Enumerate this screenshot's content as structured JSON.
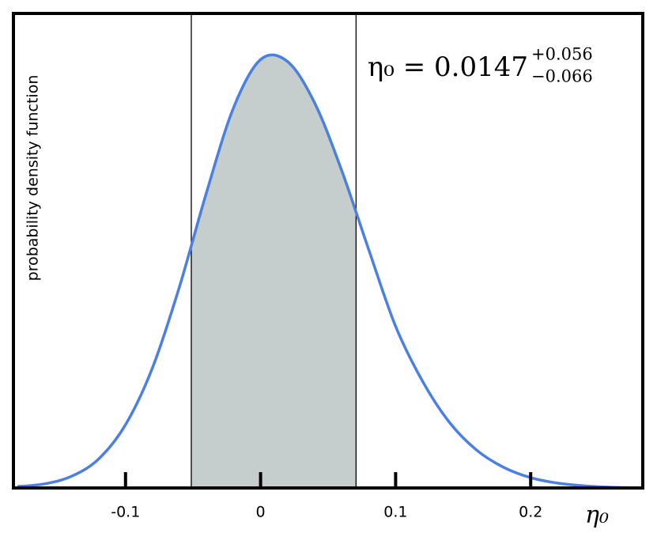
{
  "chart_data": {
    "type": "line",
    "ylabel": "probability density function",
    "xlabel": "η₀",
    "annotation": {
      "text": "η₀ = 0.0147",
      "upper": "+0.056",
      "lower": "−0.066"
    },
    "xlim": [
      -0.183,
      0.283
    ],
    "ylim": [
      0,
      6.9
    ],
    "xticks": [
      -0.1,
      0,
      0.1,
      0.2
    ],
    "interval": [
      -0.0513,
      0.0707
    ],
    "interval_color": "#c5cdcd",
    "series": [
      {
        "color": "#4a7fe3",
        "x": [
          -0.18,
          -0.16,
          -0.14,
          -0.12,
          -0.1,
          -0.08,
          -0.06,
          -0.04,
          -0.02,
          0,
          0.02,
          0.04,
          0.06,
          0.08,
          0.1,
          0.12,
          0.14,
          0.16,
          0.18,
          0.2,
          0.22,
          0.24,
          0.26,
          0.28
        ],
        "values": [
          0.02,
          0.06,
          0.17,
          0.42,
          0.92,
          1.75,
          2.93,
          4.3,
          5.53,
          6.23,
          6.2,
          5.6,
          4.62,
          3.47,
          2.35,
          1.55,
          0.95,
          0.55,
          0.3,
          0.15,
          0.07,
          0.03,
          0.01,
          0
        ]
      }
    ]
  }
}
